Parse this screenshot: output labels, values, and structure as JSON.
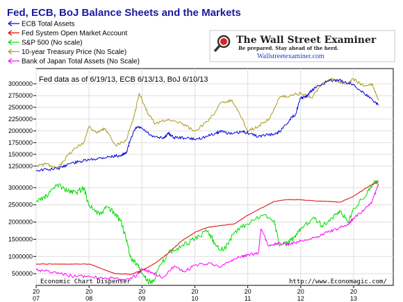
{
  "chart_data": {
    "type": "line",
    "title": "Fed, ECB, BoJ Balance Sheets and the Markets",
    "note": "Fed data as of 6/19/13, ECB 6/13/13, BoJ 6/10/13",
    "credit_left": "Economic Chart Dispenser",
    "credit_right": "http://www.Economagic.com/",
    "logo": {
      "title": "The Wall Street Examiner",
      "tagline": "Be prepared. Stay ahead of the herd.",
      "url": "Wallstreetexaminer.com"
    },
    "upper_axis": {
      "ticks": [
        "3000000",
        "2750000",
        "2500000",
        "2250000",
        "2000000",
        "1750000",
        "1500000",
        "1250000"
      ],
      "ylim": [
        1100000,
        3250000
      ]
    },
    "lower_axis": {
      "ticks": [
        "3000000",
        "2500000",
        "2000000",
        "1500000",
        "1000000",
        "500000"
      ],
      "ylim": [
        200000,
        3300000
      ]
    },
    "x_ticks": [
      {
        "top": "20",
        "bottom": "07"
      },
      {
        "top": "20",
        "bottom": "08"
      },
      {
        "top": "20",
        "bottom": "09"
      },
      {
        "top": "20",
        "bottom": "10"
      },
      {
        "top": "20",
        "bottom": "11"
      },
      {
        "top": "20",
        "bottom": "12"
      },
      {
        "top": "20",
        "bottom": "13"
      }
    ],
    "xlim": [
      2007.0,
      2013.75
    ],
    "series": [
      {
        "name": "ECB Total Assets",
        "color": "#0000dd",
        "panel": "upper",
        "x": [
          2007.0,
          2007.25,
          2007.5,
          2007.6,
          2007.8,
          2008.0,
          2008.2,
          2008.4,
          2008.6,
          2008.7,
          2008.8,
          2008.9,
          2009.0,
          2009.2,
          2009.4,
          2009.5,
          2009.6,
          2009.8,
          2010.0,
          2010.2,
          2010.4,
          2010.5,
          2010.7,
          2010.9,
          2011.0,
          2011.2,
          2011.4,
          2011.5,
          2011.6,
          2011.8,
          2011.9,
          2012.0,
          2012.1,
          2012.2,
          2012.3,
          2012.5,
          2012.7,
          2012.9,
          2013.0,
          2013.2,
          2013.4,
          2013.47
        ],
        "values": [
          1160000,
          1180000,
          1220000,
          1300000,
          1340000,
          1380000,
          1420000,
          1450000,
          1480000,
          1520000,
          1880000,
          2080000,
          2050000,
          1870000,
          1840000,
          1950000,
          1860000,
          1850000,
          1820000,
          1870000,
          1950000,
          2000000,
          1930000,
          1980000,
          1960000,
          1880000,
          1920000,
          1930000,
          1980000,
          2250000,
          2350000,
          2700000,
          2720000,
          2850000,
          2930000,
          3050000,
          3080000,
          3020000,
          2980000,
          2800000,
          2620000,
          2550000
        ]
      },
      {
        "name": "Fed System Open Market Account",
        "color": "#dd0000",
        "panel": "lower",
        "x": [
          2007.0,
          2007.5,
          2008.0,
          2008.5,
          2008.8,
          2009.0,
          2009.25,
          2009.5,
          2009.75,
          2010.0,
          2010.25,
          2010.5,
          2010.75,
          2011.0,
          2011.25,
          2011.5,
          2011.75,
          2012.0,
          2012.25,
          2012.5,
          2012.75,
          2013.0,
          2013.25,
          2013.47
        ],
        "values": [
          780000,
          780000,
          780000,
          500000,
          480000,
          600000,
          800000,
          1100000,
          1450000,
          1700000,
          1850000,
          1900000,
          1950000,
          2200000,
          2400000,
          2600000,
          2650000,
          2650000,
          2620000,
          2600000,
          2580000,
          2750000,
          3000000,
          3200000
        ]
      },
      {
        "name": "S&P 500 (No scale)",
        "color": "#00dd00",
        "panel": "lower",
        "x": [
          2007.0,
          2007.2,
          2007.4,
          2007.6,
          2007.75,
          2007.9,
          2008.0,
          2008.2,
          2008.35,
          2008.5,
          2008.6,
          2008.7,
          2008.8,
          2008.9,
          2009.0,
          2009.1,
          2009.2,
          2009.3,
          2009.5,
          2009.75,
          2010.0,
          2010.25,
          2010.4,
          2010.55,
          2010.75,
          2011.0,
          2011.3,
          2011.5,
          2011.6,
          2011.75,
          2011.9,
          2012.0,
          2012.25,
          2012.4,
          2012.6,
          2012.75,
          2012.9,
          2013.0,
          2013.25,
          2013.4,
          2013.47
        ],
        "values": [
          2600000,
          2750000,
          3100000,
          2900000,
          2850000,
          3000000,
          2500000,
          2200000,
          2450000,
          2200000,
          2050000,
          1500000,
          900000,
          800000,
          500000,
          300000,
          250000,
          600000,
          1100000,
          1300000,
          1500000,
          1750000,
          1300000,
          1200000,
          1700000,
          1950000,
          2200000,
          2050000,
          1300000,
          1400000,
          1550000,
          1800000,
          2150000,
          1900000,
          2100000,
          2300000,
          2000000,
          2400000,
          2800000,
          3200000,
          3100000
        ]
      },
      {
        "name": "10-year Treasury Price (No Scale)",
        "color": "#a89a1a",
        "panel": "upper",
        "x": [
          2007.0,
          2007.2,
          2007.4,
          2007.5,
          2007.7,
          2007.9,
          2008.0,
          2008.15,
          2008.3,
          2008.5,
          2008.7,
          2008.85,
          2008.95,
          2009.1,
          2009.25,
          2009.5,
          2009.75,
          2010.0,
          2010.25,
          2010.5,
          2010.7,
          2010.85,
          2011.0,
          2011.2,
          2011.4,
          2011.6,
          2011.8,
          2012.0,
          2012.2,
          2012.4,
          2012.55,
          2012.7,
          2012.85,
          2013.0,
          2013.2,
          2013.35,
          2013.47
        ],
        "values": [
          1250000,
          1300000,
          1180000,
          1350000,
          1600000,
          1750000,
          2100000,
          1950000,
          2050000,
          1700000,
          1800000,
          2300000,
          2800000,
          2400000,
          2150000,
          2250000,
          2150000,
          2000000,
          2200000,
          2600000,
          2650000,
          2350000,
          2000000,
          2100000,
          2250000,
          2700000,
          2750000,
          2800000,
          2700000,
          3000000,
          3100000,
          3050000,
          3000000,
          3100000,
          2950000,
          3000000,
          2650000
        ]
      },
      {
        "name": "Bank of Japan Total Assets (No Scale)",
        "color": "#ff00ff",
        "panel": "lower",
        "x": [
          2007.0,
          2007.25,
          2007.5,
          2007.75,
          2008.0,
          2008.3,
          2008.5,
          2008.7,
          2008.9,
          2009.0,
          2009.2,
          2009.4,
          2009.6,
          2009.8,
          2010.0,
          2010.3,
          2010.5,
          2010.7,
          2010.9,
          2011.0,
          2011.2,
          2011.25,
          2011.4,
          2011.6,
          2011.8,
          2012.0,
          2012.3,
          2012.5,
          2012.7,
          2012.9,
          2013.0,
          2013.2,
          2013.35,
          2013.47
        ],
        "values": [
          620000,
          560000,
          480000,
          420000,
          420000,
          380000,
          350000,
          330000,
          450000,
          650000,
          520000,
          400000,
          700000,
          550000,
          750000,
          800000,
          700000,
          900000,
          1000000,
          1050000,
          1100000,
          1800000,
          1300000,
          1400000,
          1350000,
          1450000,
          1550000,
          1700000,
          1800000,
          1950000,
          2100000,
          2350000,
          2600000,
          3100000
        ]
      }
    ]
  }
}
